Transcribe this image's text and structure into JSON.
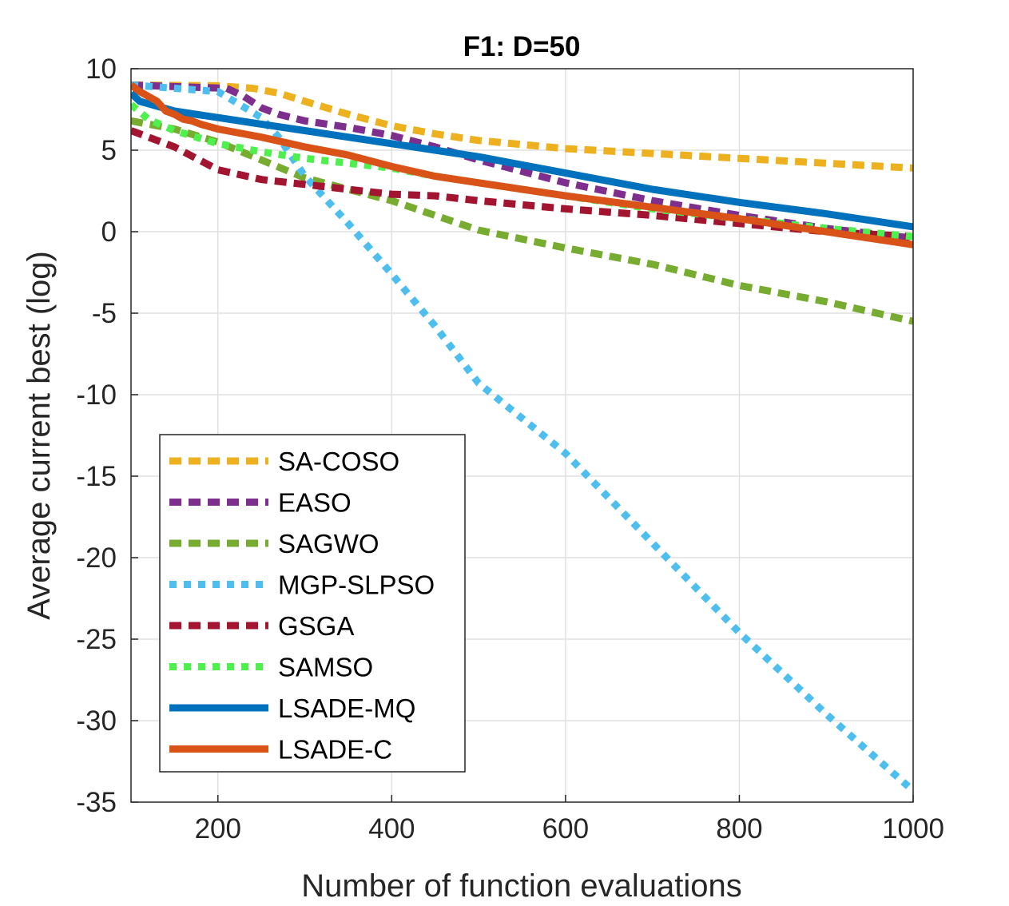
{
  "chart_data": {
    "type": "line",
    "title": "F1: D=50",
    "xlabel": "Number of function evaluations",
    "ylabel": "Average current best (log)",
    "xlim": [
      100,
      1000
    ],
    "ylim": [
      -35,
      10
    ],
    "xticks": [
      200,
      400,
      600,
      800,
      1000
    ],
    "yticks": [
      10,
      5,
      0,
      -5,
      -10,
      -15,
      -20,
      -25,
      -30,
      -35
    ],
    "grid": true,
    "legend_position": "lower-left",
    "series": [
      {
        "name": "SA-COSO",
        "color": "#EDB120",
        "style": "dashed",
        "x": [
          100,
          200,
          240,
          270,
          300,
          350,
          400,
          450,
          500,
          600,
          700,
          800,
          900,
          1000
        ],
        "y": [
          9.0,
          8.95,
          8.8,
          8.5,
          8.0,
          7.2,
          6.5,
          6.0,
          5.6,
          5.1,
          4.8,
          4.5,
          4.2,
          3.9
        ]
      },
      {
        "name": "EASO",
        "color": "#7E2F8E",
        "style": "dashed",
        "x": [
          100,
          150,
          210,
          230,
          250,
          270,
          300,
          350,
          400,
          450,
          500,
          600,
          700,
          800,
          900,
          1000
        ],
        "y": [
          9.0,
          8.9,
          8.8,
          8.3,
          7.6,
          7.2,
          6.8,
          6.4,
          5.9,
          5.2,
          4.4,
          3.0,
          1.9,
          1.0,
          0.2,
          -0.4
        ]
      },
      {
        "name": "SAGWO",
        "color": "#77AC30",
        "style": "dashed",
        "x": [
          100,
          150,
          200,
          250,
          300,
          350,
          400,
          450,
          500,
          600,
          700,
          800,
          900,
          1000
        ],
        "y": [
          6.8,
          6.3,
          5.5,
          4.4,
          3.3,
          2.6,
          1.9,
          1.0,
          0.1,
          -1.0,
          -2.0,
          -3.3,
          -4.3,
          -5.5
        ]
      },
      {
        "name": "MGP-SLPSO",
        "color": "#4DBEEE",
        "style": "dotted",
        "x": [
          100,
          150,
          200,
          250,
          270,
          300,
          350,
          400,
          450,
          500,
          600,
          700,
          800,
          900,
          1000
        ],
        "y": [
          9.0,
          8.8,
          8.6,
          7.0,
          5.8,
          3.4,
          0.5,
          -2.6,
          -5.8,
          -9.3,
          -13.6,
          -19.1,
          -24.6,
          -29.6,
          -34.3
        ]
      },
      {
        "name": "GSGA",
        "color": "#A2142F",
        "style": "dashed",
        "x": [
          100,
          150,
          200,
          250,
          300,
          350,
          400,
          450,
          500,
          600,
          700,
          800,
          900,
          1000
        ],
        "y": [
          6.2,
          5.2,
          3.8,
          3.2,
          2.9,
          2.6,
          2.3,
          2.2,
          1.9,
          1.4,
          1.0,
          0.5,
          0.0,
          -0.3
        ]
      },
      {
        "name": "SAMSO",
        "color": "#4DF04D",
        "style": "dotted",
        "x": [
          100,
          120,
          150,
          200,
          250,
          300,
          350,
          400,
          450,
          500,
          600,
          700,
          800,
          900,
          1000
        ],
        "y": [
          7.8,
          6.9,
          6.2,
          5.4,
          4.9,
          4.5,
          4.2,
          3.9,
          3.4,
          3.0,
          2.2,
          1.4,
          0.8,
          0.2,
          -0.3
        ]
      },
      {
        "name": "LSADE-MQ",
        "color": "#0072BD",
        "style": "solid",
        "x": [
          100,
          110,
          150,
          200,
          250,
          300,
          350,
          400,
          450,
          500,
          550,
          600,
          700,
          800,
          900,
          1000
        ],
        "y": [
          8.5,
          8.0,
          7.4,
          7.0,
          6.6,
          6.2,
          5.8,
          5.4,
          5.0,
          4.6,
          4.1,
          3.6,
          2.6,
          1.8,
          1.1,
          0.3
        ]
      },
      {
        "name": "LSADE-C",
        "color": "#D95319",
        "style": "solid",
        "x": [
          100,
          110,
          120,
          130,
          140,
          150,
          160,
          170,
          180,
          200,
          250,
          300,
          350,
          400,
          450,
          500,
          600,
          700,
          800,
          900,
          1000
        ],
        "y": [
          9.0,
          8.6,
          8.3,
          8.0,
          7.4,
          7.2,
          6.9,
          6.8,
          6.6,
          6.3,
          5.8,
          5.2,
          4.7,
          4.0,
          3.4,
          3.0,
          2.2,
          1.5,
          0.8,
          0.0,
          -0.8
        ]
      }
    ]
  }
}
